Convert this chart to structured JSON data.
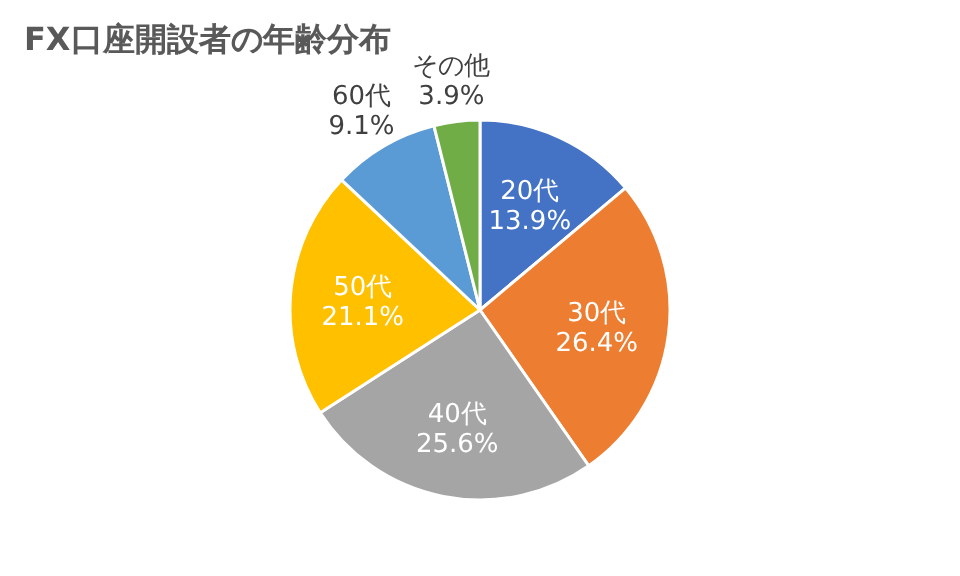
{
  "chart_data": {
    "type": "pie",
    "title": "FX口座開設者の年齢分布",
    "categories": [
      "20代",
      "30代",
      "40代",
      "50代",
      "60代",
      "その他"
    ],
    "values": [
      13.9,
      26.4,
      25.6,
      21.1,
      9.1,
      3.9
    ],
    "value_labels": [
      "13.9%",
      "26.4%",
      "25.6%",
      "21.1%",
      "9.1%",
      "3.9%"
    ],
    "colors": [
      "#4472c4",
      "#ed7d31",
      "#a5a5a5",
      "#ffc000",
      "#5b9bd5",
      "#70ad47"
    ],
    "legend": false
  }
}
